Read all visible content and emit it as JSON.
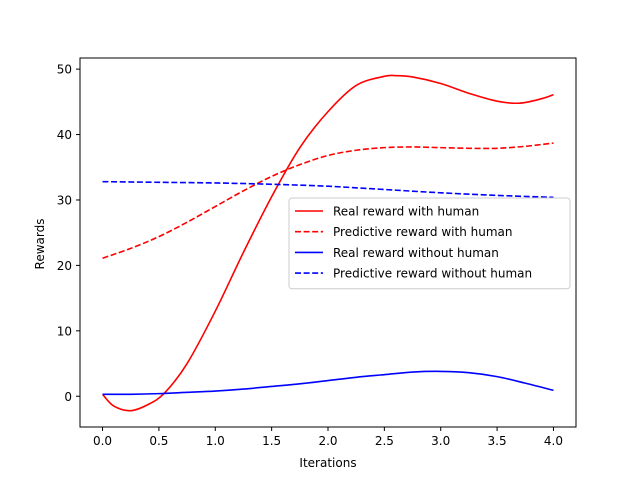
{
  "chart_data": {
    "type": "line",
    "title": "",
    "xlabel": "Iterations",
    "ylabel": "Rewards",
    "xlim": [
      -0.2,
      4.2
    ],
    "ylim": [
      -4.7,
      51.7
    ],
    "xticks": [
      0.0,
      0.5,
      1.0,
      1.5,
      2.0,
      2.5,
      3.0,
      3.5,
      4.0
    ],
    "xtick_labels": [
      "0.0",
      "0.5",
      "1.0",
      "1.5",
      "2.0",
      "2.5",
      "3.0",
      "3.5",
      "4.0"
    ],
    "yticks": [
      0,
      10,
      20,
      30,
      40,
      50
    ],
    "ytick_labels": [
      "0",
      "10",
      "20",
      "30",
      "40",
      "50"
    ],
    "grid": false,
    "legend_position": "center-right",
    "series": [
      {
        "name": "Real reward with human",
        "color": "#ff0000",
        "style": "solid",
        "x": [
          0.0,
          0.1,
          0.25,
          0.4,
          0.55,
          0.75,
          1.0,
          1.25,
          1.5,
          1.75,
          2.0,
          2.25,
          2.5,
          2.6,
          2.75,
          3.0,
          3.25,
          3.5,
          3.7,
          3.9,
          4.0
        ],
        "y": [
          0.3,
          -1.5,
          -2.2,
          -1.3,
          0.5,
          5.0,
          13.0,
          22.0,
          30.5,
          38.0,
          43.5,
          47.5,
          48.9,
          49.0,
          48.8,
          47.8,
          46.3,
          45.1,
          44.8,
          45.5,
          46.1
        ]
      },
      {
        "name": "Predictive reward with human",
        "color": "#ff0000",
        "style": "dashed",
        "x": [
          0.0,
          0.25,
          0.5,
          0.75,
          1.0,
          1.25,
          1.5,
          1.75,
          2.0,
          2.25,
          2.5,
          2.75,
          3.0,
          3.25,
          3.5,
          3.75,
          4.0
        ],
        "y": [
          21.1,
          22.6,
          24.4,
          26.6,
          29.0,
          31.4,
          33.6,
          35.4,
          36.8,
          37.6,
          38.0,
          38.1,
          38.0,
          37.9,
          37.9,
          38.2,
          38.7
        ]
      },
      {
        "name": "Real reward without human",
        "color": "#0000ff",
        "style": "solid",
        "x": [
          0.0,
          0.25,
          0.5,
          0.75,
          1.0,
          1.25,
          1.5,
          1.75,
          2.0,
          2.25,
          2.5,
          2.75,
          3.0,
          3.25,
          3.5,
          3.75,
          4.0
        ],
        "y": [
          0.3,
          0.3,
          0.4,
          0.6,
          0.8,
          1.1,
          1.5,
          1.9,
          2.4,
          2.9,
          3.3,
          3.7,
          3.8,
          3.6,
          3.0,
          2.0,
          0.9
        ]
      },
      {
        "name": "Predictive reward without human",
        "color": "#0000ff",
        "style": "dashed",
        "x": [
          0.0,
          0.5,
          1.0,
          1.5,
          2.0,
          2.5,
          3.0,
          3.5,
          4.0
        ],
        "y": [
          32.8,
          32.7,
          32.6,
          32.4,
          32.1,
          31.6,
          31.1,
          30.7,
          30.4
        ]
      }
    ]
  }
}
